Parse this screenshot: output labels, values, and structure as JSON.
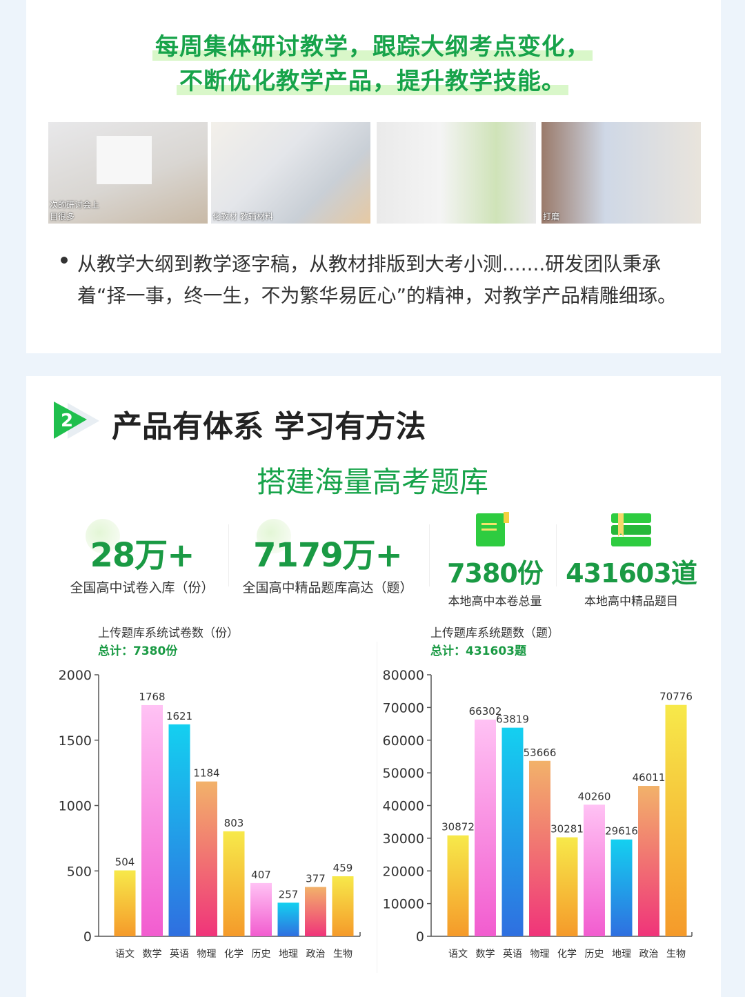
{
  "headline": [
    "每周集体研讨教学，跟踪大纲考点变化，",
    "不断优化教学产品，提升教学技能。"
  ],
  "photos": [
    {
      "caption": "次的研讨会上\n目很多"
    },
    {
      "caption": "化教材 教辅材料"
    },
    {
      "caption": ""
    },
    {
      "caption": "打磨"
    }
  ],
  "bullet": "从教学大纲到教学逐字稿，从教材排版到大考小测.......研发团队秉承着“择一事，终一生，不为繁华易匠心”的精神，对教学产品精雕细琢。",
  "section": {
    "number": "2",
    "title": "产品有体系 学习有方法",
    "subtitle": "搭建海量高考题库"
  },
  "stats": [
    {
      "value": "28万+",
      "label": "全国高中试卷入库（份）"
    },
    {
      "value": "7179万+",
      "label": "全国高中精品题库高达（题）"
    },
    {
      "value": "7380份",
      "label": "本地高中本卷总量",
      "icon": "document-icon"
    },
    {
      "value": "431603道",
      "label": "本地高中精品题目",
      "icon": "books-icon"
    }
  ],
  "colors": {
    "green": "#17a34a",
    "gradients": [
      [
        "#f7e94a",
        "#f59a2a"
      ],
      [
        "#ffc2f4",
        "#f25ccf"
      ],
      [
        "#14d0f0",
        "#2f6fe0"
      ],
      [
        "#f2b26a",
        "#f0347a"
      ]
    ]
  },
  "chart_data": [
    {
      "type": "bar",
      "title": "上传题库系统试卷数（份）",
      "total": "总计：7380份",
      "categories": [
        "语文",
        "数学",
        "英语",
        "物理",
        "化学",
        "历史",
        "地理",
        "政治",
        "生物"
      ],
      "values": [
        504,
        1768,
        1621,
        1184,
        803,
        407,
        257,
        377,
        459
      ],
      "ylim": [
        0,
        2000
      ],
      "yticks": [
        0,
        500,
        1000,
        1500,
        2000
      ],
      "grid": false,
      "legend": "none"
    },
    {
      "type": "bar",
      "title": "上传题库系统题数（题）",
      "total": "总计：431603题",
      "categories": [
        "语文",
        "数学",
        "英语",
        "物理",
        "化学",
        "历史",
        "地理",
        "政治",
        "生物"
      ],
      "values": [
        30872,
        66302,
        63819,
        53666,
        30281,
        40260,
        29616,
        46011,
        70776
      ],
      "ylim": [
        0,
        80000
      ],
      "yticks": [
        0,
        10000,
        20000,
        30000,
        40000,
        50000,
        60000,
        70000,
        80000
      ],
      "grid": false,
      "legend": "none"
    }
  ]
}
